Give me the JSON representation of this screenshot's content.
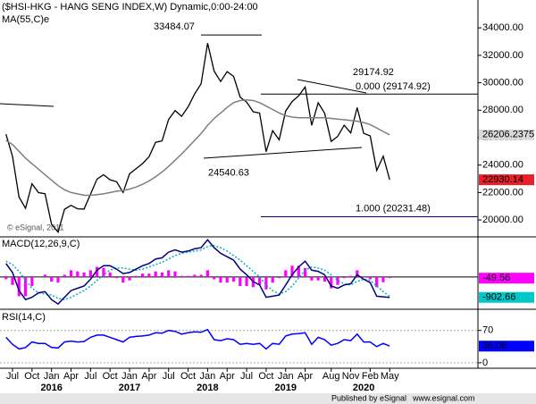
{
  "chart_data": [
    {
      "type": "line",
      "title": "($HSI-HKG - HANG SENG INDEX,W) Dynamic,0:00-24:00",
      "subtitle": "MA(55,C)e",
      "watermark": "© eSignal, 2011",
      "x": [
        "2015-06",
        "2015-07",
        "2015-08",
        "2015-09",
        "2015-10",
        "2015-11",
        "2015-12",
        "2016-01",
        "2016-02",
        "2016-03",
        "2016-04",
        "2016-05",
        "2016-06",
        "2016-07",
        "2016-08",
        "2016-09",
        "2016-10",
        "2016-11",
        "2016-12",
        "2017-01",
        "2017-02",
        "2017-03",
        "2017-04",
        "2017-05",
        "2017-06",
        "2017-07",
        "2017-08",
        "2017-09",
        "2017-10",
        "2017-11",
        "2017-12",
        "2018-01",
        "2018-02",
        "2018-03",
        "2018-04",
        "2018-05",
        "2018-06",
        "2018-07",
        "2018-08",
        "2018-09",
        "2018-10",
        "2018-11",
        "2018-12",
        "2019-01",
        "2019-02",
        "2019-03",
        "2019-04",
        "2019-05",
        "2019-06",
        "2019-07",
        "2019-08",
        "2019-09",
        "2019-10",
        "2019-11",
        "2019-12",
        "2020-01",
        "2020-02",
        "2020-03",
        "2020-04",
        "2020-05"
      ],
      "series": [
        {
          "name": "HSI",
          "color": "#000000",
          "label_color": "#e8202a",
          "values": [
            26250,
            24636,
            21670,
            20846,
            22640,
            21996,
            21914,
            19683,
            19112,
            20777,
            21067,
            20815,
            20794,
            21891,
            22977,
            23297,
            22935,
            22790,
            22001,
            23361,
            23741,
            24112,
            24615,
            25661,
            25765,
            27324,
            27970,
            27554,
            28246,
            29177,
            29919,
            32887,
            30845,
            30093,
            30808,
            30469,
            28955,
            28583,
            27889,
            27789,
            24980,
            26507,
            25846,
            27942,
            28633,
            29051,
            29699,
            26901,
            28543,
            27777,
            25725,
            26092,
            26907,
            26346,
            28190,
            26313,
            26130,
            23603,
            24644,
            22930.14
          ]
        },
        {
          "name": "MA(55,C)e",
          "color": "#7f7f7f",
          "label_color": "#d9d9d9",
          "values": [
            25800,
            25500,
            25000,
            24500,
            24100,
            23700,
            23300,
            22900,
            22500,
            22200,
            22000,
            21900,
            21800,
            21800,
            21850,
            21900,
            22000,
            22100,
            22150,
            22250,
            22400,
            22600,
            22850,
            23150,
            23500,
            23900,
            24350,
            24800,
            25300,
            25800,
            26300,
            26900,
            27400,
            27800,
            28200,
            28550,
            28700,
            28750,
            28700,
            28550,
            28300,
            28050,
            27800,
            27600,
            27500,
            27450,
            27450,
            27450,
            27450,
            27450,
            27400,
            27350,
            27300,
            27250,
            27200,
            27100,
            26950,
            26700,
            26450,
            26206.2375
          ]
        }
      ],
      "ylim": [
        18900,
        35900
      ],
      "yticks": [
        {
          "value": 20000,
          "label": "20000.00"
        },
        {
          "value": 22000,
          "label": "22000.00"
        },
        {
          "value": 24000,
          "label": "24000.00"
        },
        {
          "value": 26000,
          "label": "26000.00"
        },
        {
          "value": 28000,
          "label": "28000.00"
        },
        {
          "value": 30000,
          "label": "30000.00"
        },
        {
          "value": 32000,
          "label": "32000.00"
        },
        {
          "value": 34000,
          "label": "34000.00"
        }
      ],
      "annotations": {
        "peak": 33484.07,
        "swing_high": 29174.92,
        "swing_low": 24540.63,
        "fib_high": {
          "value": 29174.92,
          "label": "0.000 (29174.92)"
        },
        "fib_low": {
          "value": 20231.48,
          "label": "1.000 (20231.48)"
        }
      }
    },
    {
      "type": "line",
      "title": "MACD(12,26,9,C)",
      "x": [
        "2015-06",
        "2015-07",
        "2015-08",
        "2015-09",
        "2015-10",
        "2015-11",
        "2015-12",
        "2016-01",
        "2016-02",
        "2016-03",
        "2016-04",
        "2016-05",
        "2016-06",
        "2016-07",
        "2016-08",
        "2016-09",
        "2016-10",
        "2016-11",
        "2016-12",
        "2017-01",
        "2017-02",
        "2017-03",
        "2017-04",
        "2017-05",
        "2017-06",
        "2017-07",
        "2017-08",
        "2017-09",
        "2017-10",
        "2017-11",
        "2017-12",
        "2018-01",
        "2018-02",
        "2018-03",
        "2018-04",
        "2018-05",
        "2018-06",
        "2018-07",
        "2018-08",
        "2018-09",
        "2018-10",
        "2018-11",
        "2018-12",
        "2019-01",
        "2019-02",
        "2019-03",
        "2019-04",
        "2019-05",
        "2019-06",
        "2019-07",
        "2019-08",
        "2019-09",
        "2019-10",
        "2019-11",
        "2019-12",
        "2020-01",
        "2020-02",
        "2020-03",
        "2020-04",
        "2020-05"
      ],
      "series": [
        {
          "name": "Histogram",
          "type": "bar",
          "color": "#ff00ff",
          "values": [
            -100,
            -350,
            -850,
            -850,
            -400,
            0,
            100,
            -200,
            -250,
            100,
            300,
            250,
            200,
            300,
            450,
            400,
            200,
            -50,
            -250,
            -150,
            50,
            150,
            150,
            250,
            200,
            300,
            250,
            50,
            50,
            100,
            100,
            300,
            -100,
            -250,
            -250,
            -200,
            -400,
            -400,
            -450,
            -350,
            -550,
            -250,
            -50,
            300,
            500,
            500,
            400,
            -150,
            -150,
            -200,
            -500,
            -350,
            -50,
            50,
            300,
            0,
            -100,
            -450,
            -230,
            -49.56
          ]
        },
        {
          "name": "Signal",
          "type": "line",
          "color": "#00b0c0",
          "dash": true,
          "values": [
            700,
            550,
            250,
            -150,
            -500,
            -700,
            -750,
            -800,
            -950,
            -1000,
            -900,
            -750,
            -600,
            -400,
            -150,
            100,
            300,
            400,
            400,
            350,
            300,
            350,
            450,
            550,
            650,
            800,
            950,
            1050,
            1100,
            1150,
            1200,
            1350,
            1400,
            1300,
            1150,
            950,
            750,
            500,
            250,
            0,
            -350,
            -600,
            -750,
            -650,
            -400,
            -50,
            300,
            450,
            400,
            300,
            100,
            -150,
            -300,
            -350,
            -200,
            -100,
            -150,
            -400,
            -650,
            -853
          ]
        },
        {
          "name": "MACD",
          "type": "line",
          "color": "#000080",
          "label_color": "#00c8c8",
          "values": [
            600,
            200,
            -600,
            -1000,
            -900,
            -700,
            -650,
            -1000,
            -1200,
            -900,
            -600,
            -500,
            -400,
            -100,
            300,
            500,
            500,
            350,
            150,
            200,
            350,
            500,
            600,
            800,
            850,
            1100,
            1200,
            1100,
            1150,
            1250,
            1300,
            1650,
            1300,
            1050,
            900,
            750,
            350,
            100,
            -200,
            -350,
            -900,
            -850,
            -800,
            -350,
            100,
            450,
            700,
            300,
            250,
            100,
            -400,
            -500,
            -350,
            -300,
            100,
            -100,
            -250,
            -850,
            -880,
            -902.66
          ]
        }
      ],
      "ylim": [
        -1350,
        1700
      ]
    },
    {
      "type": "line",
      "title": "RSI(14,C)",
      "x": [
        "2015-06",
        "2015-07",
        "2015-08",
        "2015-09",
        "2015-10",
        "2015-11",
        "2015-12",
        "2016-01",
        "2016-02",
        "2016-03",
        "2016-04",
        "2016-05",
        "2016-06",
        "2016-07",
        "2016-08",
        "2016-09",
        "2016-10",
        "2016-11",
        "2016-12",
        "2017-01",
        "2017-02",
        "2017-03",
        "2017-04",
        "2017-05",
        "2017-06",
        "2017-07",
        "2017-08",
        "2017-09",
        "2017-10",
        "2017-11",
        "2017-12",
        "2018-01",
        "2018-02",
        "2018-03",
        "2018-04",
        "2018-05",
        "2018-06",
        "2018-07",
        "2018-08",
        "2018-09",
        "2018-10",
        "2018-11",
        "2018-12",
        "2019-01",
        "2019-02",
        "2019-03",
        "2019-04",
        "2019-05",
        "2019-06",
        "2019-07",
        "2019-08",
        "2019-09",
        "2019-10",
        "2019-11",
        "2019-12",
        "2020-01",
        "2020-02",
        "2020-03",
        "2020-04",
        "2020-05"
      ],
      "series": [
        {
          "name": "RSI",
          "color": "#0000ff",
          "values": [
            55,
            40,
            30,
            33,
            45,
            42,
            42,
            33,
            32,
            45,
            47,
            45,
            46,
            55,
            60,
            60,
            55,
            50,
            45,
            55,
            57,
            58,
            60,
            65,
            64,
            70,
            68,
            62,
            65,
            67,
            66,
            72,
            50,
            48,
            52,
            50,
            40,
            42,
            40,
            42,
            30,
            42,
            40,
            58,
            62,
            63,
            65,
            40,
            55,
            50,
            38,
            42,
            50,
            48,
            62,
            45,
            45,
            35,
            42,
            36.06
          ]
        }
      ],
      "ylim": [
        -8,
        112
      ],
      "yticks": [
        0,
        70
      ],
      "xticks": [
        {
          "value": "2015-07",
          "label": "Jul"
        },
        {
          "value": "2015-10",
          "label": "Oct"
        },
        {
          "value": "2016-01",
          "label": "Jan"
        },
        {
          "value": "2016-04",
          "label": "Apr"
        },
        {
          "value": "2016-07",
          "label": "Jul"
        },
        {
          "value": "2016-10",
          "label": "Oct"
        },
        {
          "value": "2017-01",
          "label": "Jan"
        },
        {
          "value": "2017-04",
          "label": "Apr"
        },
        {
          "value": "2017-07",
          "label": "Jul"
        },
        {
          "value": "2017-10",
          "label": "Oct"
        },
        {
          "value": "2018-01",
          "label": "Jan"
        },
        {
          "value": "2018-04",
          "label": "Apr"
        },
        {
          "value": "2018-07",
          "label": "Jul"
        },
        {
          "value": "2018-10",
          "label": "Oct"
        },
        {
          "value": "2019-01",
          "label": "Jan"
        },
        {
          "value": "2019-04",
          "label": "Apr"
        },
        {
          "value": "2019-08",
          "label": "Aug"
        },
        {
          "value": "2019-11",
          "label": "Nov"
        },
        {
          "value": "2020-02",
          "label": "Feb"
        },
        {
          "value": "2020-05",
          "label": "May"
        }
      ],
      "years": [
        {
          "value": "2016-01",
          "label": "2016"
        },
        {
          "value": "2017-01",
          "label": "2017"
        },
        {
          "value": "2018-01",
          "label": "2018"
        },
        {
          "value": "2019-01",
          "label": "2019"
        },
        {
          "value": "2020-01",
          "label": "2020"
        }
      ],
      "footer": {
        "publisher": "Published by eSignal",
        "site": "www.esignal.com"
      }
    }
  ]
}
